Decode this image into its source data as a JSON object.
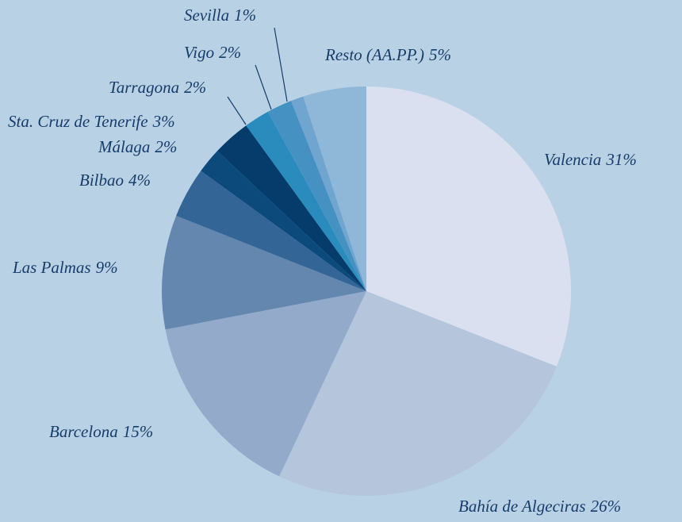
{
  "chart_data": {
    "type": "pie",
    "categories": [
      "Valencia",
      "Bahía de Algeciras",
      "Barcelona",
      "Las Palmas",
      "Bilbao",
      "Málaga",
      "Sta. Cruz de Tenerife",
      "Tarragona",
      "Vigo",
      "Sevilla",
      "Resto (AA.PP.)"
    ],
    "values": [
      31,
      26,
      15,
      9,
      4,
      2,
      3,
      2,
      2,
      1,
      5
    ],
    "value_labels": [
      "31%",
      "26%",
      "15%",
      "9%",
      "4%",
      "2%",
      "3%",
      "2%",
      "2%",
      "1%",
      "5%"
    ],
    "colors": [
      "#dae0ef",
      "#b4c5dc",
      "#94aacb",
      "#6487b0",
      "#336596",
      "#0d4a7c",
      "#063c6c",
      "#2a8bbd",
      "#4592c2",
      "#6fa5cf",
      "#8fb7d8"
    ]
  }
}
